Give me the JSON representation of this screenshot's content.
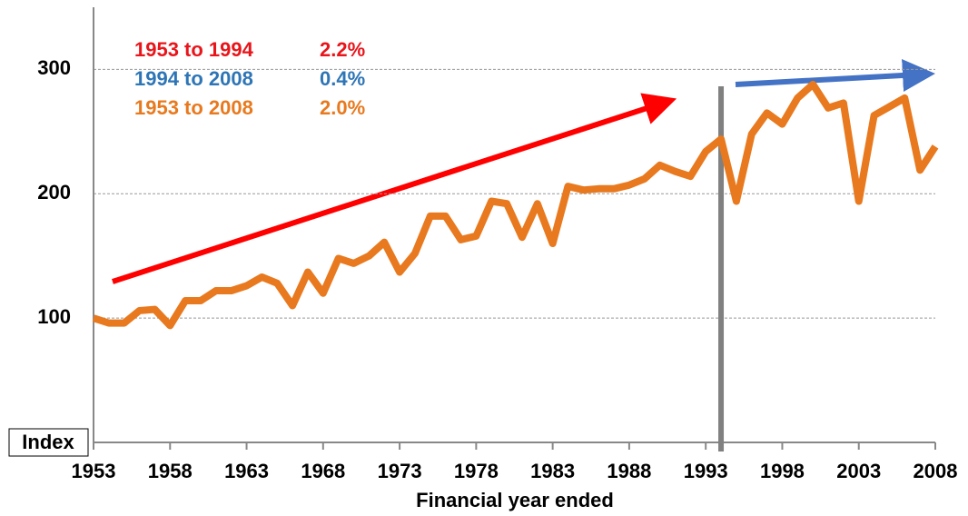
{
  "chart_data": {
    "type": "line",
    "x": [
      1953,
      1954,
      1955,
      1956,
      1957,
      1958,
      1959,
      1960,
      1961,
      1962,
      1963,
      1964,
      1965,
      1966,
      1967,
      1968,
      1969,
      1970,
      1971,
      1972,
      1973,
      1974,
      1975,
      1976,
      1977,
      1978,
      1979,
      1980,
      1981,
      1982,
      1983,
      1984,
      1985,
      1986,
      1987,
      1988,
      1989,
      1990,
      1991,
      1992,
      1993,
      1994,
      1995,
      1996,
      1997,
      1998,
      1999,
      2000,
      2001,
      2002,
      2003,
      2004,
      2005,
      2006,
      2007,
      2008
    ],
    "values": [
      100,
      96,
      96,
      106,
      107,
      94,
      114,
      114,
      122,
      122,
      126,
      133,
      128,
      110,
      137,
      120,
      148,
      144,
      150,
      161,
      137,
      152,
      182,
      182,
      163,
      166,
      194,
      192,
      165,
      192,
      160,
      206,
      203,
      204,
      204,
      207,
      212,
      223,
      218,
      214,
      234,
      244,
      194,
      248,
      265,
      256,
      277,
      288,
      269,
      273,
      194,
      263,
      270,
      277,
      219,
      238
    ],
    "color": "#e8791e",
    "xlim": [
      1953,
      2008
    ],
    "xticks": [
      1953,
      1958,
      1963,
      1968,
      1973,
      1978,
      1983,
      1988,
      1993,
      1998,
      2003,
      2008
    ],
    "ylim": [
      0,
      350
    ],
    "yticks": [
      100,
      200,
      300
    ],
    "grid": true,
    "xlabel": "Financial year ended",
    "ylabel": "Index",
    "vline_x": 1994,
    "annotations": [
      {
        "period": "1953 to 1994",
        "rate": "2.2%",
        "color": "#e8151b"
      },
      {
        "period": "1994 to 2008",
        "rate": "0.4%",
        "color": "#2e75b6"
      },
      {
        "period": "1953 to 2008",
        "rate": "2.0%",
        "color": "#e8791e"
      }
    ]
  }
}
